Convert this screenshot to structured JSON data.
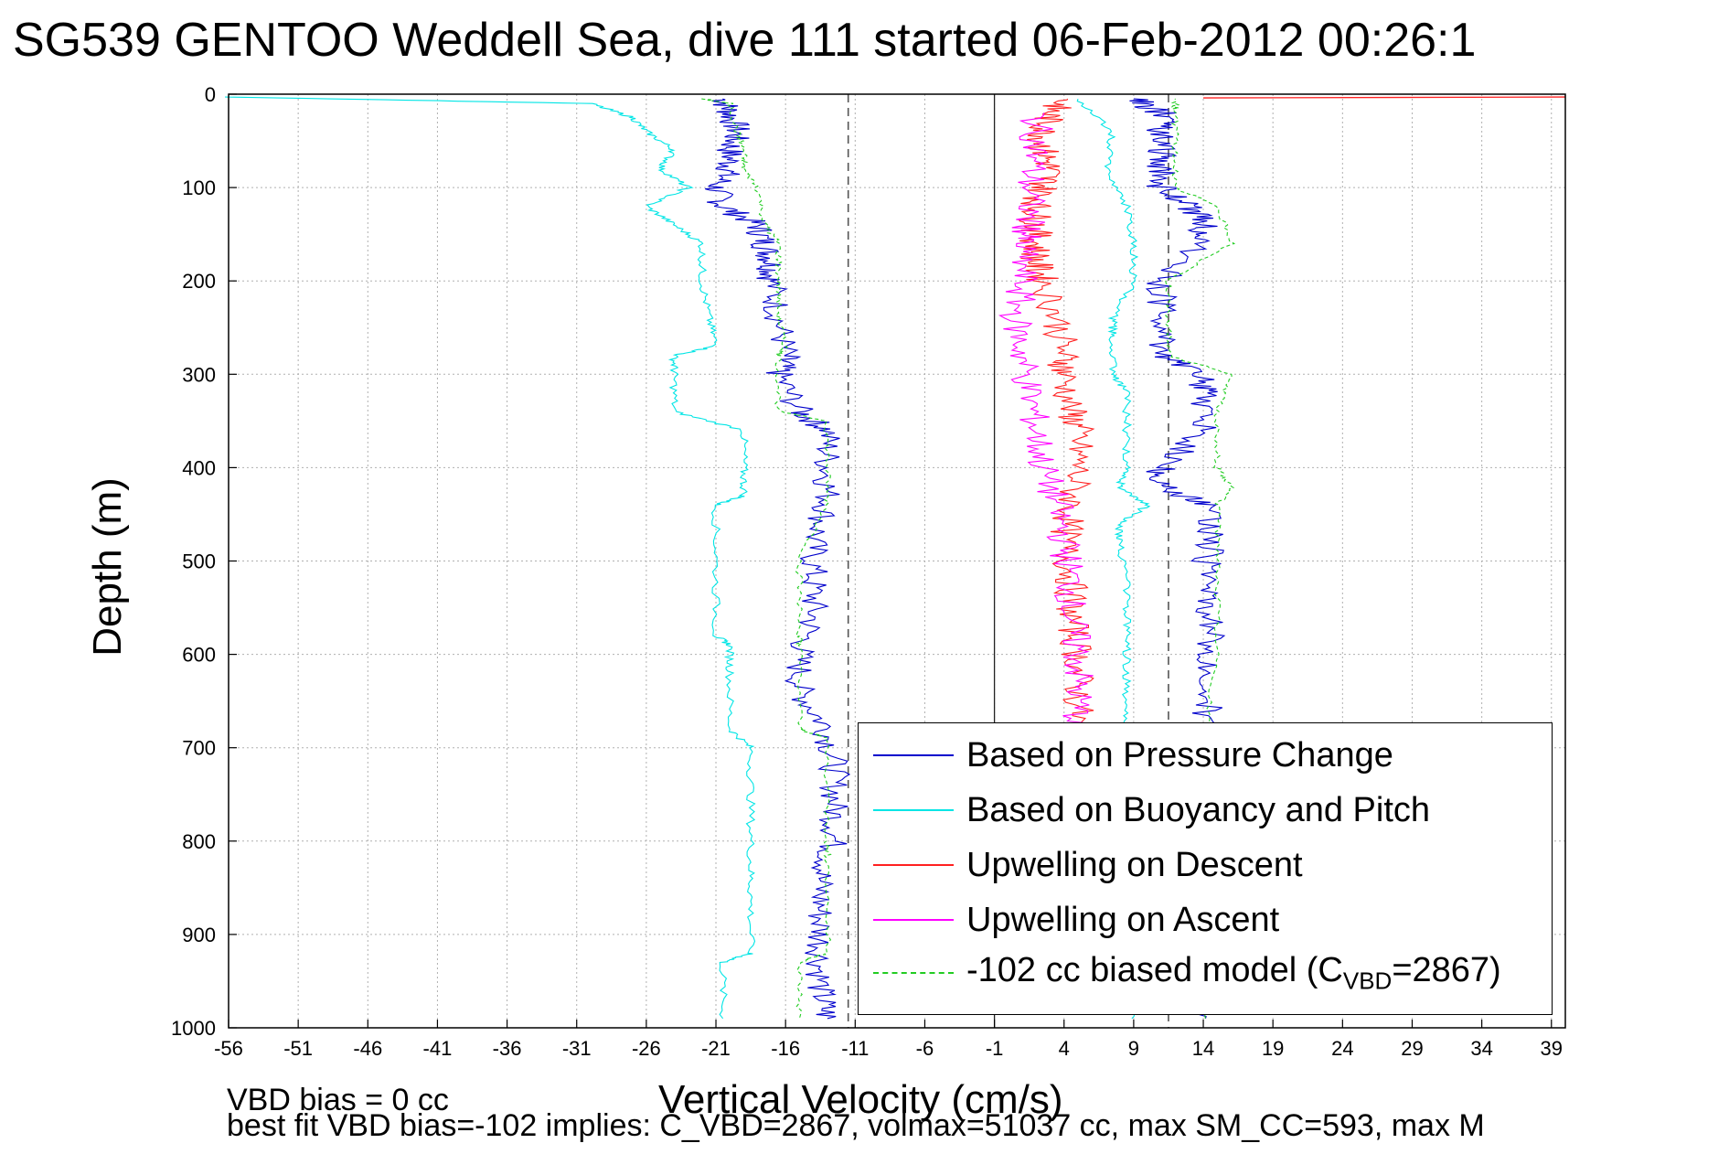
{
  "title": "SG539 GENTOO Weddell Sea, dive 111 started 06-Feb-2012 00:26:1",
  "footer": {
    "line1": "VBD bias = 0 cc",
    "line2": "best fit VBD bias=-102 implies: C_VBD=2867, volmax=51037 cc, max SM_CC=593, max M"
  },
  "legend": {
    "placement": "lower-right",
    "model_prefix": "-102 cc biased model (C",
    "model_sub": "VBD",
    "model_suffix": "=2867)"
  },
  "colors": {
    "pressure": "#0000cc",
    "buoyancy": "#00e5e5",
    "descent": "#ff2020",
    "ascent": "#ff00ff",
    "model": "#22cc22"
  },
  "chart_data": {
    "type": "line",
    "title": "SG539 GENTOO Weddell Sea, dive 111 started 06-Feb-2012 00:26:1",
    "xlabel": "Vertical Velocity (cm/s)",
    "ylabel": "Depth (m)",
    "xlim": [
      -56,
      40
    ],
    "ylim": [
      0,
      1000
    ],
    "y_reversed": true,
    "grid": true,
    "x_ticks": [
      -56,
      -51,
      -46,
      -41,
      -36,
      -31,
      -26,
      -21,
      -16,
      -11,
      -6,
      -1,
      4,
      9,
      14,
      19,
      24,
      29,
      34,
      39
    ],
    "y_ticks": [
      0,
      100,
      200,
      300,
      400,
      500,
      600,
      700,
      800,
      900,
      1000
    ],
    "reference_lines": {
      "solid_x": [
        -1
      ],
      "dashed_x": [
        -11.5,
        11.5
      ]
    },
    "series": [
      {
        "name": "Based on Pressure Change",
        "color": "#0000cc",
        "depth": [
          5,
          20,
          40,
          60,
          80,
          100,
          120,
          140,
          160,
          180,
          200,
          240,
          280,
          300,
          340,
          360,
          400,
          440,
          480,
          520,
          560,
          600,
          640,
          680,
          720,
          760,
          800,
          840,
          880,
          920,
          960,
          990
        ],
        "velocity": [
          -20.5,
          -20,
          -19.5,
          -20,
          -20,
          -21,
          -20.5,
          -18,
          -17.5,
          -17,
          -17,
          -16.5,
          -16,
          -16.5,
          -15,
          -13,
          -13,
          -13,
          -14,
          -14,
          -14,
          -15,
          -15,
          -13,
          -12.5,
          -12.5,
          -12.5,
          -13.5,
          -13.5,
          -13.5,
          -13.5,
          -13
        ],
        "ascent_depth": [
          990,
          960,
          900,
          840,
          780,
          720,
          680,
          640,
          600,
          560,
          520,
          480,
          440,
          420,
          400,
          360,
          320,
          300,
          280,
          240,
          200,
          160,
          140,
          120,
          100,
          80,
          60,
          40,
          20,
          5
        ],
        "ascent_velocity": [
          14,
          14,
          14,
          14,
          14,
          14,
          14,
          14.5,
          14.5,
          14.5,
          14,
          14.5,
          14.5,
          11,
          11,
          14,
          14,
          14,
          11,
          11,
          11,
          14,
          14,
          13,
          11,
          11,
          11,
          11,
          11,
          9
        ]
      },
      {
        "name": "Based on Buoyancy and Pitch",
        "color": "#00e5e5",
        "depth": [
          3,
          10,
          25,
          40,
          60,
          80,
          100,
          120,
          140,
          160,
          200,
          240,
          270,
          280,
          300,
          340,
          360,
          400,
          430,
          440,
          500,
          580,
          590,
          620,
          680,
          700,
          760,
          820,
          860,
          920,
          930,
          990
        ],
        "velocity": [
          -56,
          -30,
          -27,
          -26,
          -24,
          -25,
          -23,
          -26,
          -24,
          -22,
          -22,
          -21.5,
          -21,
          -24,
          -24,
          -24,
          -19,
          -19,
          -19,
          -21,
          -21,
          -21,
          -20,
          -20,
          -20,
          -18.5,
          -18.5,
          -18.5,
          -18.5,
          -18.5,
          -20.5,
          -20.5
        ],
        "ascent_depth": [
          990,
          960,
          900,
          840,
          780,
          720,
          680,
          640,
          600,
          560,
          520,
          480,
          460,
          440,
          420,
          400,
          360,
          320,
          300,
          260,
          240,
          200,
          160,
          120,
          80,
          40,
          5
        ],
        "ascent_velocity": [
          9,
          9,
          9,
          9,
          9,
          9,
          8.5,
          8.5,
          8.5,
          8.5,
          8.5,
          8,
          8,
          10,
          8,
          8.5,
          8.5,
          8.5,
          7.5,
          7.5,
          7.5,
          9,
          9,
          8.5,
          7,
          7.5,
          5
        ]
      },
      {
        "name": "Upwelling on Descent",
        "color": "#ff2020",
        "depth": [
          5,
          20,
          40,
          60,
          80,
          100,
          120,
          140,
          160,
          180,
          200,
          240,
          280,
          300,
          340,
          360,
          400,
          440,
          480,
          520,
          560,
          600,
          640,
          680
        ],
        "velocity": [
          4,
          3,
          2.5,
          2.5,
          3,
          2.5,
          2,
          2,
          2,
          2,
          2.5,
          3.5,
          4,
          4,
          4.5,
          5,
          5,
          4.5,
          4,
          4.5,
          4.5,
          5,
          5,
          5
        ]
      },
      {
        "name": "Upwelling on Ascent",
        "color": "#ff00ff",
        "depth": [
          20,
          60,
          100,
          140,
          160,
          200,
          240,
          280,
          320,
          360,
          400,
          440,
          480,
          520,
          560,
          600,
          640,
          680
        ],
        "velocity": [
          2,
          2,
          1.5,
          1.5,
          1,
          1,
          0.5,
          1,
          1.5,
          2,
          2.5,
          3.5,
          4,
          4.5,
          4.5,
          5,
          5,
          5
        ]
      },
      {
        "name": "-102 cc biased model",
        "color": "#22cc22",
        "depth": [
          5,
          10,
          40,
          60,
          80,
          100,
          140,
          160,
          200,
          240,
          270,
          280,
          340,
          350,
          400,
          440,
          500,
          580,
          590,
          680,
          690,
          800,
          820,
          920,
          930,
          990
        ],
        "velocity": [
          -22,
          -20,
          -19.5,
          -19,
          -19,
          -18,
          -17.5,
          -16.5,
          -16.5,
          -16.5,
          -16,
          -16.5,
          -16.5,
          -13,
          -13,
          -13,
          -15,
          -15,
          -15,
          -15,
          -13,
          -13,
          -13,
          -13,
          -15,
          -15
        ],
        "ascent_depth": [
          990,
          930,
          820,
          690,
          600,
          500,
          440,
          420,
          400,
          340,
          300,
          280,
          240,
          200,
          160,
          120,
          100,
          60,
          20,
          5
        ],
        "ascent_velocity": [
          14,
          14,
          14,
          14,
          15,
          15,
          15,
          16,
          15,
          15,
          16,
          11.5,
          11.5,
          11.5,
          16,
          15,
          12,
          12,
          12,
          12
        ]
      }
    ]
  }
}
